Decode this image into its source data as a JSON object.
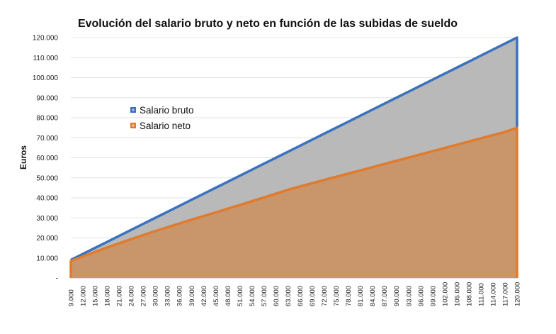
{
  "chart_data": {
    "type": "area",
    "title": "Evolución del salario bruto y neto en función de las subidas de sueldo",
    "xlabel": "",
    "ylabel": "Euros",
    "ylim": [
      0,
      120000
    ],
    "yticks": [
      "-",
      "10.000",
      "20.000",
      "30.000",
      "40.000",
      "50.000",
      "60.000",
      "70.000",
      "80.000",
      "90.000",
      "100.000",
      "110.000",
      "120.000"
    ],
    "ytick_values": [
      0,
      10000,
      20000,
      30000,
      40000,
      50000,
      60000,
      70000,
      80000,
      90000,
      100000,
      110000,
      120000
    ],
    "x_labels": [
      "9.000",
      "12.000",
      "15.000",
      "18.000",
      "21.000",
      "24.000",
      "27.000",
      "30.000",
      "33.000",
      "36.000",
      "39.000",
      "42.000",
      "45.000",
      "48.000",
      "51.000",
      "54.000",
      "57.000",
      "60.000",
      "63.000",
      "66.000",
      "69.000",
      "72.000",
      "75.000",
      "78.000",
      "81.000",
      "84.000",
      "87.000",
      "90.000",
      "93.000",
      "96.000",
      "99.000",
      "102.000",
      "105.000",
      "108.000",
      "111.000",
      "114.000",
      "117.000",
      "120.000"
    ],
    "x": [
      9000,
      12000,
      15000,
      18000,
      21000,
      24000,
      27000,
      30000,
      33000,
      36000,
      39000,
      42000,
      45000,
      48000,
      51000,
      54000,
      57000,
      60000,
      63000,
      66000,
      69000,
      72000,
      75000,
      78000,
      81000,
      84000,
      87000,
      90000,
      93000,
      96000,
      99000,
      102000,
      105000,
      108000,
      111000,
      114000,
      117000,
      120000
    ],
    "series": [
      {
        "name": "Salario bruto",
        "color": "#3a72c0",
        "values": [
          9000,
          12000,
          15000,
          18000,
          21000,
          24000,
          27000,
          30000,
          33000,
          36000,
          39000,
          42000,
          45000,
          48000,
          51000,
          54000,
          57000,
          60000,
          63000,
          66000,
          69000,
          72000,
          75000,
          78000,
          81000,
          84000,
          87000,
          90000,
          93000,
          96000,
          99000,
          102000,
          105000,
          108000,
          111000,
          114000,
          117000,
          120000
        ]
      },
      {
        "name": "Salario neto",
        "color": "#e07b2e",
        "values": [
          8500,
          10800,
          13000,
          15200,
          17300,
          19400,
          21400,
          23400,
          25300,
          27200,
          29100,
          30900,
          32700,
          34600,
          36400,
          38300,
          40200,
          42100,
          44000,
          45700,
          47300,
          48900,
          50500,
          52100,
          53700,
          55300,
          56900,
          58500,
          60100,
          61700,
          63300,
          64900,
          66500,
          68100,
          69700,
          71300,
          72900,
          75000
        ]
      }
    ],
    "fills": {
      "between": "#b9b9b9",
      "under_neto": "#c8966a"
    },
    "legend_position": "center-left",
    "grid": true
  }
}
